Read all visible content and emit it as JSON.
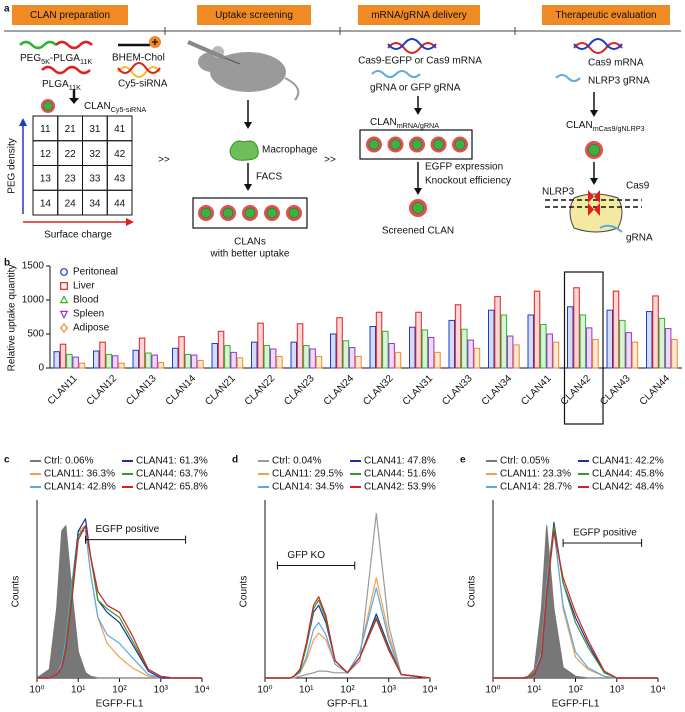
{
  "panel_a": {
    "label": "a",
    "steps": [
      "CLAN preparation",
      "Uptake screening",
      "mRNA/gRNA delivery",
      "Therapeutic evaluation"
    ],
    "materials": [
      [
        "PEG",
        {
          "sub": "5K"
        },
        "-PLGA",
        {
          "sub": "11K"
        }
      ],
      "BHEM-Chol",
      [
        "PLGA",
        {
          "sub": "11K"
        }
      ],
      "Cy5-siRNA"
    ],
    "library": [
      "CLAN",
      {
        "sub": "Cy5-siRNA"
      }
    ],
    "grid": [
      [
        "11",
        "21",
        "31",
        "41"
      ],
      [
        "12",
        "22",
        "32",
        "42"
      ],
      [
        "13",
        "23",
        "33",
        "43"
      ],
      [
        "14",
        "24",
        "34",
        "44"
      ]
    ],
    "y_axis": "PEG density",
    "x_axis": "Surface charge",
    "separator": ">>",
    "macrophage": "Macrophage",
    "facs": "FACS",
    "uptake_result": [
      "CLANs",
      "with better uptake"
    ],
    "delivery_inputs": [
      "Cas9-EGFP or Cas9 mRNA",
      "gRNA or GFP gRNA"
    ],
    "delivery_clan": [
      "CLAN",
      {
        "sub": "mRNA/gRNA"
      }
    ],
    "readouts": [
      "EGFP expression",
      "Knockout efficiency"
    ],
    "screened": "Screened CLAN",
    "therapy_inputs": [
      "Cas9 mRNA",
      "NLRP3 gRNA"
    ],
    "therapy_clan": [
      "CLAN",
      {
        "sub": "mCas9/gNLRP3"
      }
    ],
    "target_labels": [
      "NLRP3",
      "Cas9",
      "gRNA"
    ]
  },
  "chart_data": [
    {
      "type": "bar",
      "label": "b",
      "ylabel": "Relative uptake quantity",
      "categories": [
        "CLAN11",
        "CLAN12",
        "CLAN13",
        "CLAN14",
        "CLAN21",
        "CLAN22",
        "CLAN23",
        "CLAN24",
        "CLAN32",
        "CLAN31",
        "CLAN33",
        "CLAN34",
        "CLAN41",
        "CLAN42",
        "CLAN43",
        "CLAN44"
      ],
      "category_colors": [
        "#e02020",
        "#111111",
        "#111111",
        "#e02020",
        "#111111",
        "#111111",
        "#111111",
        "#111111",
        "#111111",
        "#111111",
        "#111111",
        "#111111",
        "#e02020",
        "#e02020",
        "#111111",
        "#e02020"
      ],
      "highlight": 13,
      "ylim": [
        0,
        1500
      ],
      "yticks": [
        0,
        500,
        1000,
        1500
      ],
      "series": [
        {
          "name": "Peritoneal",
          "color": "#1a3cc8",
          "marker": "circle",
          "values": [
            240,
            250,
            260,
            290,
            360,
            380,
            380,
            500,
            610,
            600,
            700,
            850,
            780,
            900,
            850,
            830
          ]
        },
        {
          "name": "Liver",
          "color": "#e02020",
          "marker": "square",
          "values": [
            350,
            380,
            440,
            460,
            540,
            660,
            650,
            740,
            820,
            820,
            930,
            1050,
            1130,
            1180,
            1130,
            1060
          ]
        },
        {
          "name": "Blood",
          "color": "#2db52d",
          "marker": "triangle",
          "values": [
            200,
            200,
            220,
            200,
            330,
            330,
            330,
            400,
            540,
            560,
            570,
            780,
            640,
            780,
            700,
            730
          ]
        },
        {
          "name": "Spleen",
          "color": "#9b30d0",
          "marker": "triangle-down",
          "values": [
            160,
            180,
            190,
            190,
            230,
            280,
            280,
            300,
            360,
            450,
            410,
            470,
            500,
            590,
            520,
            580
          ]
        },
        {
          "name": "Adipose",
          "color": "#f08a24",
          "marker": "diamond",
          "values": [
            70,
            70,
            80,
            110,
            150,
            170,
            170,
            170,
            230,
            230,
            290,
            340,
            380,
            420,
            380,
            420
          ]
        }
      ]
    },
    {
      "type": "line",
      "label": "c",
      "xscale": "log",
      "xlabel": "EGFP-FL1",
      "ylabel": "Counts",
      "xlim": [
        1,
        10000
      ],
      "ylim": [
        0,
        100
      ],
      "xticks": [
        {
          "value": 1,
          "label": "10⁰"
        },
        {
          "value": 10,
          "label": "10¹"
        },
        {
          "value": 100,
          "label": "10²"
        },
        {
          "value": 1000,
          "label": "10³"
        },
        {
          "value": 10000,
          "label": "10⁴"
        }
      ],
      "annotation": {
        "text": "EGFP positive",
        "range": [
          15,
          4000
        ],
        "at": 80
      },
      "x": [
        1,
        2,
        3,
        4,
        5,
        7,
        10,
        15,
        20,
        30,
        50,
        100,
        200,
        500,
        1000,
        2000,
        10000
      ],
      "series": [
        {
          "name": "Ctrl: 0.06%",
          "color": "#777777",
          "fill": true,
          "values": [
            0,
            5,
            40,
            85,
            88,
            50,
            15,
            3,
            1,
            0,
            0,
            0,
            0,
            0,
            0,
            0,
            0
          ]
        },
        {
          "name": "CLAN11: 36.3%",
          "color": "#f5a04a",
          "values": [
            0,
            0,
            2,
            8,
            20,
            50,
            85,
            88,
            60,
            35,
            20,
            12,
            6,
            1,
            0,
            0,
            0
          ]
        },
        {
          "name": "CLAN14: 42.8%",
          "color": "#5aa9e6",
          "values": [
            0,
            0,
            2,
            8,
            22,
            55,
            85,
            85,
            60,
            35,
            25,
            20,
            12,
            2,
            0,
            0,
            0
          ]
        },
        {
          "name": "CLAN41: 61.3%",
          "color": "#1f2fa0",
          "values": [
            0,
            0,
            2,
            6,
            18,
            50,
            85,
            92,
            70,
            45,
            38,
            32,
            20,
            4,
            0,
            0,
            0
          ]
        },
        {
          "name": "CLAN44: 63.7%",
          "color": "#2aa02a",
          "values": [
            0,
            0,
            2,
            6,
            18,
            50,
            82,
            88,
            70,
            45,
            40,
            35,
            22,
            5,
            1,
            0,
            0
          ]
        },
        {
          "name": "CLAN42: 65.8%",
          "color": "#d62020",
          "values": [
            0,
            0,
            2,
            6,
            16,
            45,
            80,
            88,
            70,
            50,
            42,
            38,
            25,
            5,
            1,
            0,
            0
          ]
        }
      ]
    },
    {
      "type": "line",
      "label": "d",
      "xscale": "log",
      "xlabel": "GFP-FL1",
      "ylabel": "Counts",
      "xlim": [
        1,
        10000
      ],
      "ylim": [
        0,
        100
      ],
      "xticks": [
        {
          "value": 1,
          "label": "10⁰"
        },
        {
          "value": 10,
          "label": "10¹"
        },
        {
          "value": 100,
          "label": "10²"
        },
        {
          "value": 1000,
          "label": "10³"
        },
        {
          "value": 10000,
          "label": "10⁴"
        }
      ],
      "annotation": {
        "text": "GFP KO",
        "range": [
          2,
          150
        ],
        "at": 65
      },
      "x": [
        1,
        2,
        3,
        4,
        5,
        7,
        10,
        15,
        20,
        30,
        50,
        100,
        200,
        500,
        1000,
        2000,
        10000
      ],
      "series": [
        {
          "name": "Ctrl: 0.04%",
          "color": "#999999",
          "values": [
            0,
            0,
            0,
            0,
            0,
            1,
            2,
            3,
            4,
            4,
            3,
            3,
            10,
            95,
            30,
            2,
            0
          ]
        },
        {
          "name": "CLAN11: 29.5%",
          "color": "#f5a04a",
          "values": [
            0,
            0,
            0,
            0,
            1,
            3,
            10,
            22,
            26,
            22,
            8,
            3,
            15,
            58,
            25,
            2,
            0
          ]
        },
        {
          "name": "CLAN14: 34.5%",
          "color": "#5aa9e6",
          "values": [
            0,
            0,
            0,
            0,
            1,
            3,
            12,
            28,
            32,
            25,
            8,
            3,
            15,
            52,
            22,
            2,
            0
          ]
        },
        {
          "name": "CLAN41: 47.8%",
          "color": "#1f2fa0",
          "values": [
            0,
            0,
            0,
            0,
            1,
            4,
            18,
            38,
            42,
            32,
            10,
            3,
            12,
            37,
            18,
            2,
            0
          ]
        },
        {
          "name": "CLAN44: 51.6%",
          "color": "#2aa02a",
          "values": [
            0,
            0,
            0,
            0,
            1,
            4,
            18,
            40,
            45,
            34,
            10,
            3,
            12,
            35,
            17,
            2,
            0
          ]
        },
        {
          "name": "CLAN42: 53.9%",
          "color": "#d62020",
          "values": [
            0,
            0,
            0,
            0,
            1,
            5,
            20,
            42,
            47,
            36,
            10,
            3,
            12,
            34,
            16,
            2,
            0
          ]
        }
      ]
    },
    {
      "type": "line",
      "label": "e",
      "xscale": "log",
      "xlabel": "EGFP-FL1",
      "ylabel": "Counts",
      "xlim": [
        1,
        10000
      ],
      "ylim": [
        0,
        100
      ],
      "xticks": [
        {
          "value": 1,
          "label": "10⁰"
        },
        {
          "value": 10,
          "label": "10¹"
        },
        {
          "value": 100,
          "label": "10²"
        },
        {
          "value": 1000,
          "label": "10³"
        },
        {
          "value": 10000,
          "label": "10⁴"
        }
      ],
      "annotation": {
        "text": "EGFP positive",
        "range": [
          50,
          4000
        ],
        "at": 78
      },
      "x": [
        1,
        2,
        3,
        4,
        5,
        7,
        10,
        15,
        20,
        30,
        50,
        100,
        200,
        500,
        1000,
        2000,
        10000
      ],
      "series": [
        {
          "name": "Ctrl: 0.05%",
          "color": "#777777",
          "fill": true,
          "values": [
            0,
            0,
            0,
            0,
            0,
            1,
            5,
            40,
            88,
            40,
            6,
            1,
            0,
            0,
            0,
            0,
            0
          ]
        },
        {
          "name": "CLAN11: 23.3%",
          "color": "#f5a04a",
          "values": [
            0,
            0,
            0,
            0,
            0,
            0,
            2,
            15,
            55,
            88,
            40,
            12,
            5,
            1,
            0,
            0,
            0
          ]
        },
        {
          "name": "CLAN14: 28.7%",
          "color": "#5aa9e6",
          "values": [
            0,
            0,
            0,
            0,
            0,
            0,
            2,
            15,
            55,
            85,
            42,
            15,
            6,
            1,
            0,
            0,
            0
          ]
        },
        {
          "name": "CLAN41: 42.2%",
          "color": "#1f2fa0",
          "values": [
            0,
            0,
            0,
            0,
            0,
            0,
            2,
            12,
            50,
            90,
            55,
            35,
            20,
            3,
            0,
            0,
            0
          ]
        },
        {
          "name": "CLAN44: 45.8%",
          "color": "#2aa02a",
          "values": [
            0,
            0,
            0,
            0,
            0,
            0,
            2,
            12,
            50,
            88,
            55,
            32,
            18,
            3,
            0,
            0,
            0
          ]
        },
        {
          "name": "CLAN42: 48.4%",
          "color": "#d62020",
          "values": [
            0,
            0,
            0,
            0,
            0,
            0,
            2,
            12,
            48,
            85,
            58,
            38,
            22,
            4,
            0,
            0,
            0
          ]
        }
      ]
    }
  ]
}
